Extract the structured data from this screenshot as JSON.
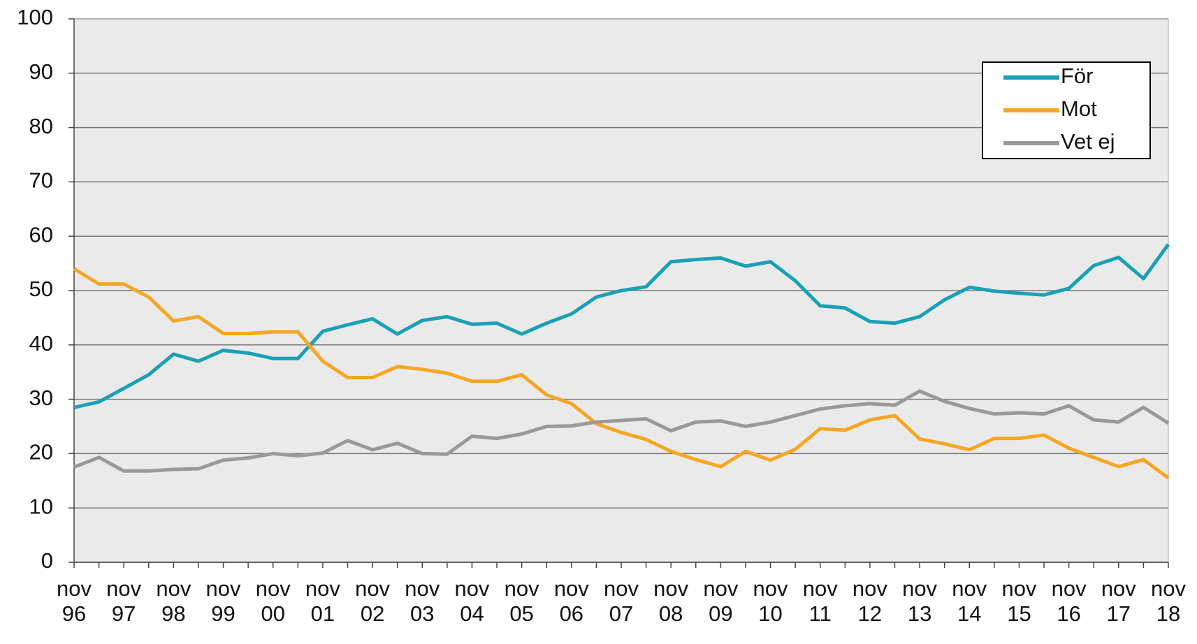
{
  "chart_data": {
    "type": "line",
    "categories": [
      "nov 96",
      null,
      "nov 97",
      null,
      "nov 98",
      null,
      "nov 99",
      null,
      "nov 00",
      null,
      "nov 01",
      null,
      "nov 02",
      null,
      "nov 03",
      null,
      "nov 04",
      null,
      "nov 05",
      null,
      "nov 06",
      null,
      "nov 07",
      null,
      "nov 08",
      null,
      "nov 09",
      null,
      "nov 10",
      null,
      "nov 11",
      null,
      "nov 12",
      null,
      "nov 13",
      null,
      "nov 14",
      null,
      "nov 15",
      null,
      "nov 16",
      null,
      "nov 17",
      null,
      "nov 18"
    ],
    "series": [
      {
        "name": "För",
        "color": "#1aa0b4",
        "values": [
          28.5,
          29.5,
          32,
          34.5,
          38.3,
          37,
          39,
          38.5,
          37.5,
          37.5,
          42.5,
          43.7,
          44.8,
          42,
          44.5,
          45.2,
          43.8,
          44,
          42,
          44,
          45.7,
          48.8,
          50,
          50.7,
          55.3,
          55.7,
          56,
          54.5,
          55.3,
          51.8,
          47.2,
          46.8,
          44.3,
          44,
          45.2,
          48.3,
          50.6,
          49.9,
          49.5,
          49.2,
          50.4,
          54.6,
          56.1,
          52.2,
          58.5
        ]
      },
      {
        "name": "Mot",
        "color": "#f5a623",
        "values": [
          54,
          51.2,
          51.2,
          48.8,
          44.4,
          45.2,
          42.1,
          42.1,
          42.4,
          42.4,
          37,
          34,
          34,
          36,
          35.5,
          34.8,
          33.3,
          33.3,
          34.5,
          30.8,
          29.2,
          25.5,
          23.9,
          22.6,
          20.4,
          18.9,
          17.6,
          20.4,
          18.8,
          20.8,
          24.6,
          24.3,
          26.2,
          27,
          22.7,
          21.8,
          20.7,
          22.8,
          22.8,
          23.4,
          21,
          19.3,
          17.6,
          18.9,
          15.5
        ]
      },
      {
        "name": "Vet ej",
        "color": "#999999",
        "values": [
          17.5,
          19.3,
          16.8,
          16.8,
          17.1,
          17.2,
          18.8,
          19.2,
          20,
          19.6,
          20.1,
          22.4,
          20.7,
          21.9,
          20,
          19.9,
          23.2,
          22.8,
          23.6,
          25,
          25.1,
          25.8,
          26.1,
          26.4,
          24.2,
          25.8,
          26,
          25,
          25.8,
          27,
          28.2,
          28.8,
          29.2,
          28.9,
          31.5,
          29.6,
          28.3,
          27.3,
          27.5,
          27.3,
          28.8,
          26.2,
          25.8,
          28.5,
          25.6
        ]
      }
    ],
    "ylim": [
      0,
      100
    ],
    "yticks": [
      0,
      10,
      20,
      30,
      40,
      50,
      60,
      70,
      80,
      90,
      100
    ],
    "grid": true,
    "legend": "upper right"
  }
}
